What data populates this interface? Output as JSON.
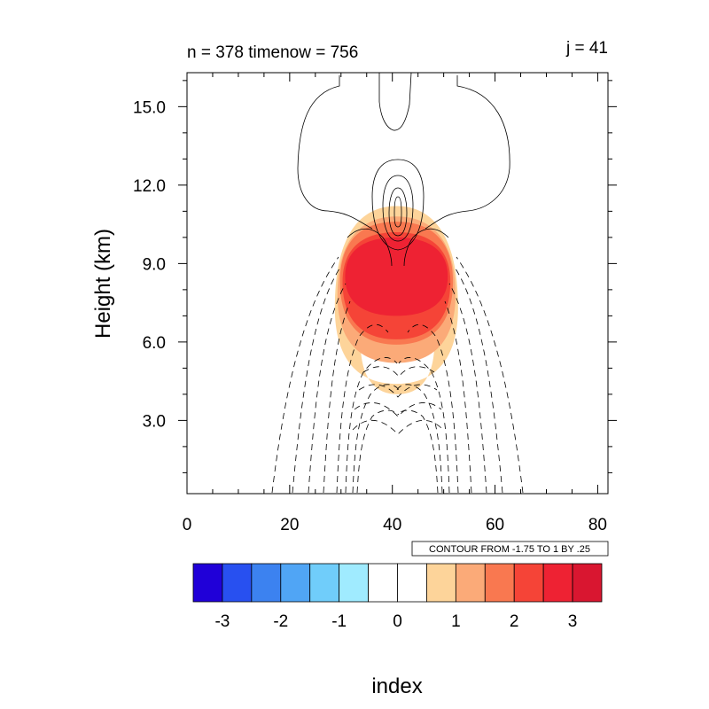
{
  "chart_data": {
    "type": "contour",
    "left_string": "n = 378 timenow = 756",
    "right_string": "j = 41",
    "xlabel": "",
    "ylabel": "Height (km)",
    "xlim": [
      0,
      82
    ],
    "ylim": [
      0.2,
      16.3
    ],
    "x_ticks": [
      0,
      20,
      40,
      60,
      80
    ],
    "x_tick_labels": [
      "0",
      "20",
      "40",
      "60",
      "80"
    ],
    "y_ticks": [
      3.0,
      6.0,
      9.0,
      12.0,
      15.0
    ],
    "y_tick_labels": [
      "3.0",
      "6.0",
      "9.0",
      "12.0",
      "15.0"
    ],
    "contour_info": "CONTOUR FROM -1.75 TO 1 BY .25",
    "colorbar": {
      "title": "index",
      "colors": [
        "#2000d8",
        "#2850f0",
        "#3c82f0",
        "#50a5f5",
        "#70cdfa",
        "#a0ebff",
        "#ffffff",
        "#ffffff",
        "#fdd49a",
        "#fbaa78",
        "#f97850",
        "#f54437",
        "#ee2233",
        "#d91630"
      ],
      "tick_values": [
        -3,
        -2,
        -1,
        0,
        1,
        2,
        3
      ],
      "tick_labels": [
        "-3",
        "-2",
        "-1",
        "0",
        "1",
        "2",
        "3"
      ],
      "min": -3.5,
      "max": 3.5
    },
    "fill_field": {
      "center_x": 40.5,
      "layers": [
        {
          "level": 0.5,
          "color": "#fdd49a",
          "cx": 40.8,
          "cy": 7.3,
          "rx": 12.0,
          "ry_top": 3.9,
          "ry_bottom": 2.9,
          "hole_cx": 41.0,
          "hole_cy": 6.0,
          "hole_rx": 7.2,
          "hole_ry": 2.0
        },
        {
          "level": 1.0,
          "color": "#fbaa78",
          "cx": 40.8,
          "cy": 7.8,
          "rx": 11.5,
          "ry_top": 3.0,
          "ry_bottom": 2.6
        },
        {
          "level": 1.5,
          "color": "#f97850",
          "cx": 40.8,
          "cy": 8.3,
          "rx": 11.0,
          "ry_top": 2.3,
          "ry_bottom": 2.4
        },
        {
          "level": 2.0,
          "color": "#f54437",
          "cx": 40.8,
          "cy": 8.3,
          "rx": 10.5,
          "ry_top": 1.9,
          "ry_bottom": 2.2
        },
        {
          "level": 2.5,
          "color": "#ee2233",
          "cx": 40.8,
          "cy": 8.5,
          "rx": 10.0,
          "ry_top": 1.5,
          "ry_bottom": 1.5
        }
      ]
    }
  }
}
